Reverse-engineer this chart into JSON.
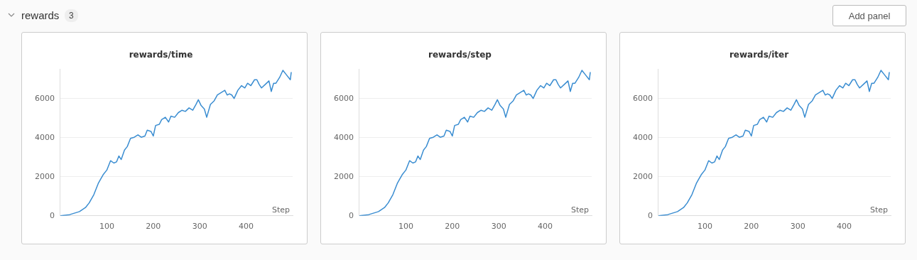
{
  "chart_data": [
    {
      "type": "other",
      "annotations": [
        "rewards",
        "3",
        "Add panel"
      ]
    },
    {
      "type": "line",
      "title": "rewards/time",
      "xlabel": "Step",
      "xlim": [
        0,
        500
      ],
      "xticks": [
        100,
        200,
        300,
        400
      ],
      "ylim": [
        0,
        7500
      ],
      "yticks": [
        0,
        2000,
        4000,
        6000
      ],
      "grid": "y",
      "legend": false,
      "marker": "none",
      "line_style": "solid",
      "series": [
        {
          "color": "#3a8dd1",
          "x": [
            0,
            20,
            41,
            54,
            62,
            72,
            82,
            92,
            100,
            108,
            115,
            121,
            126,
            131,
            138,
            144,
            151,
            159,
            167,
            174,
            182,
            187,
            195,
            200,
            205,
            213,
            218,
            226,
            233,
            238,
            246,
            254,
            262,
            269,
            277,
            285,
            292,
            297,
            303,
            310,
            315,
            323,
            331,
            338,
            346,
            354,
            359,
            364,
            369,
            374,
            382,
            390,
            397,
            403,
            410,
            418,
            423,
            428,
            433,
            441,
            449,
            454,
            459,
            464,
            472,
            479,
            487,
            495,
            497
          ],
          "values": [
            0,
            60,
            215,
            420,
            660,
            1080,
            1680,
            2100,
            2340,
            2820,
            2700,
            2760,
            3060,
            2880,
            3360,
            3540,
            3960,
            4020,
            4140,
            4020,
            4080,
            4380,
            4320,
            4080,
            4620,
            4680,
            4920,
            5040,
            4800,
            5100,
            5040,
            5280,
            5400,
            5340,
            5520,
            5400,
            5700,
            5940,
            5640,
            5460,
            5040,
            5700,
            5880,
            6180,
            6300,
            6420,
            6180,
            6240,
            6180,
            6000,
            6420,
            6660,
            6540,
            6780,
            6660,
            6960,
            6960,
            6720,
            6540,
            6720,
            6900,
            6360,
            6780,
            6780,
            7080,
            7440,
            7200,
            6960,
            7350
          ]
        }
      ]
    },
    {
      "type": "line",
      "title": "rewards/step",
      "xlabel": "Step",
      "xlim": [
        0,
        500
      ],
      "xticks": [
        100,
        200,
        300,
        400
      ],
      "ylim": [
        0,
        7500
      ],
      "yticks": [
        0,
        2000,
        4000,
        6000
      ],
      "grid": "y",
      "legend": false,
      "marker": "none",
      "line_style": "solid",
      "series": [
        {
          "color": "#3a8dd1",
          "x": [
            0,
            20,
            41,
            54,
            62,
            72,
            82,
            92,
            100,
            108,
            115,
            121,
            126,
            131,
            138,
            144,
            151,
            159,
            167,
            174,
            182,
            187,
            195,
            200,
            205,
            213,
            218,
            226,
            233,
            238,
            246,
            254,
            262,
            269,
            277,
            285,
            292,
            297,
            303,
            310,
            315,
            323,
            331,
            338,
            346,
            354,
            359,
            364,
            369,
            374,
            382,
            390,
            397,
            403,
            410,
            418,
            423,
            428,
            433,
            441,
            449,
            454,
            459,
            464,
            472,
            479,
            487,
            495,
            497
          ],
          "values": [
            0,
            60,
            215,
            420,
            660,
            1080,
            1680,
            2100,
            2340,
            2820,
            2700,
            2760,
            3060,
            2880,
            3360,
            3540,
            3960,
            4020,
            4140,
            4020,
            4080,
            4380,
            4320,
            4080,
            4620,
            4680,
            4920,
            5040,
            4800,
            5100,
            5040,
            5280,
            5400,
            5340,
            5520,
            5400,
            5700,
            5940,
            5640,
            5460,
            5040,
            5700,
            5880,
            6180,
            6300,
            6420,
            6180,
            6240,
            6180,
            6000,
            6420,
            6660,
            6540,
            6780,
            6660,
            6960,
            6960,
            6720,
            6540,
            6720,
            6900,
            6360,
            6780,
            6780,
            7080,
            7440,
            7200,
            6960,
            7350
          ]
        }
      ]
    },
    {
      "type": "line",
      "title": "rewards/iter",
      "xlabel": "Step",
      "xlim": [
        0,
        500
      ],
      "xticks": [
        100,
        200,
        300,
        400
      ],
      "ylim": [
        0,
        7500
      ],
      "yticks": [
        0,
        2000,
        4000,
        6000
      ],
      "grid": "y",
      "legend": false,
      "marker": "none",
      "line_style": "solid",
      "series": [
        {
          "color": "#3a8dd1",
          "x": [
            0,
            20,
            41,
            54,
            62,
            72,
            82,
            92,
            100,
            108,
            115,
            121,
            126,
            131,
            138,
            144,
            151,
            159,
            167,
            174,
            182,
            187,
            195,
            200,
            205,
            213,
            218,
            226,
            233,
            238,
            246,
            254,
            262,
            269,
            277,
            285,
            292,
            297,
            303,
            310,
            315,
            323,
            331,
            338,
            346,
            354,
            359,
            364,
            369,
            374,
            382,
            390,
            397,
            403,
            410,
            418,
            423,
            428,
            433,
            441,
            449,
            454,
            459,
            464,
            472,
            479,
            487,
            495,
            497
          ],
          "values": [
            0,
            60,
            215,
            420,
            660,
            1080,
            1680,
            2100,
            2340,
            2820,
            2700,
            2760,
            3060,
            2880,
            3360,
            3540,
            3960,
            4020,
            4140,
            4020,
            4080,
            4380,
            4320,
            4080,
            4620,
            4680,
            4920,
            5040,
            4800,
            5100,
            5040,
            5280,
            5400,
            5340,
            5520,
            5400,
            5700,
            5940,
            5640,
            5460,
            5040,
            5700,
            5880,
            6180,
            6300,
            6420,
            6180,
            6240,
            6180,
            6000,
            6420,
            6660,
            6540,
            6780,
            6660,
            6960,
            6960,
            6720,
            6540,
            6720,
            6900,
            6360,
            6780,
            6780,
            7080,
            7440,
            7200,
            6960,
            7350
          ]
        }
      ]
    }
  ]
}
